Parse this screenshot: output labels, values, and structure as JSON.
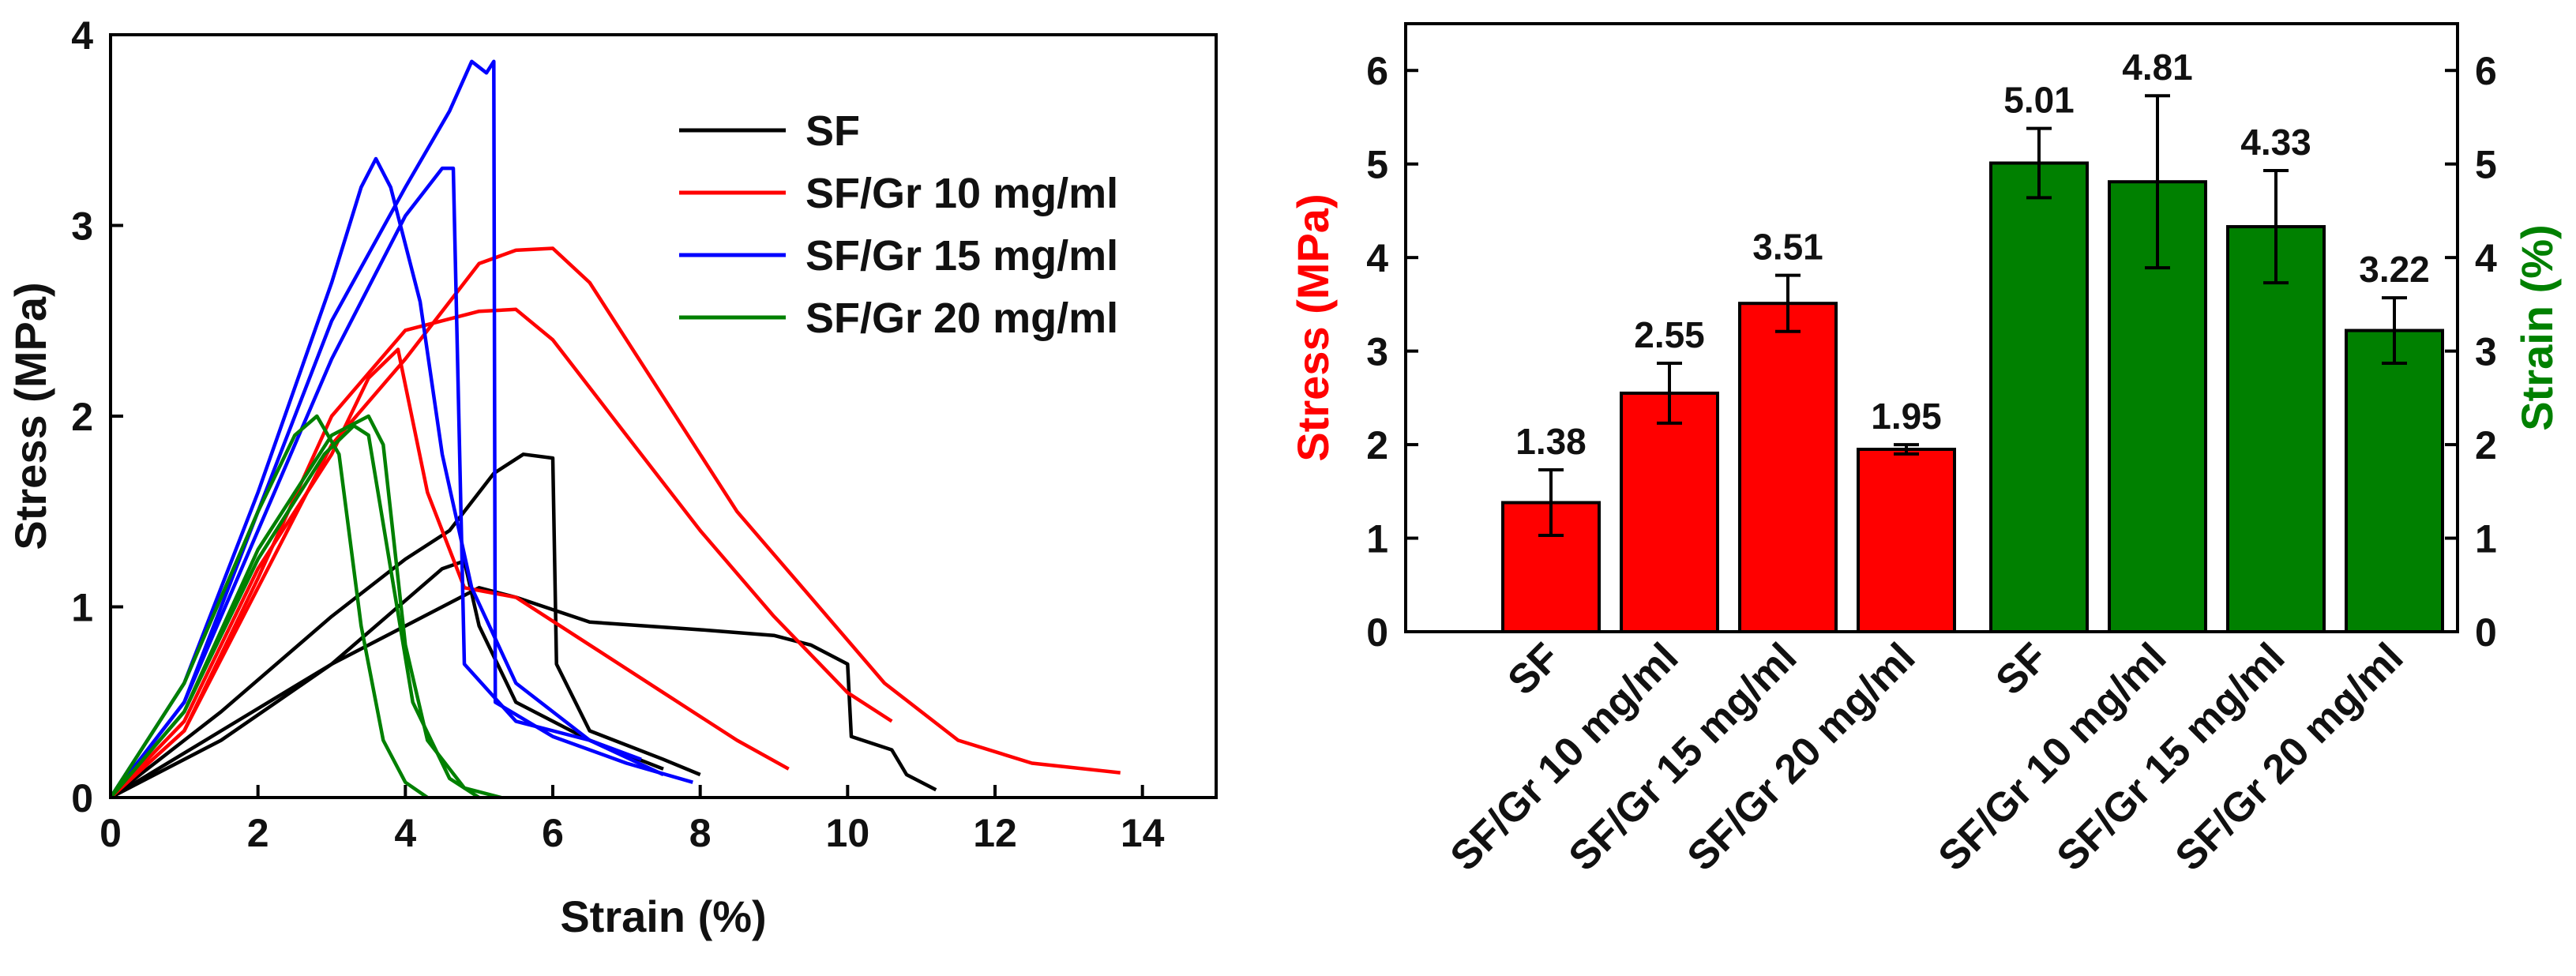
{
  "chart_data": [
    {
      "type": "line",
      "xlabel": "Strain (%)",
      "ylabel": "Stress (MPa)",
      "xlim": [
        0,
        15
      ],
      "ylim": [
        0,
        4
      ],
      "xticks": [
        0,
        2,
        4,
        6,
        8,
        10,
        12,
        14
      ],
      "yticks": [
        0,
        1,
        2,
        3,
        4
      ],
      "legend_position": "top-right",
      "series": [
        {
          "name": "SF",
          "color": "#000000",
          "curves": [
            [
              [
                0,
                0
              ],
              [
                1.5,
                0.45
              ],
              [
                3,
                0.95
              ],
              [
                4,
                1.25
              ],
              [
                4.6,
                1.4
              ],
              [
                5.2,
                1.7
              ],
              [
                5.6,
                1.8
              ],
              [
                6,
                1.78
              ],
              [
                6.05,
                0.7
              ],
              [
                6.5,
                0.35
              ],
              [
                7.5,
                0.2
              ],
              [
                8,
                0.12
              ]
            ],
            [
              [
                0,
                0
              ],
              [
                1.5,
                0.35
              ],
              [
                3,
                0.7
              ],
              [
                4.5,
                1.2
              ],
              [
                4.8,
                1.24
              ],
              [
                5,
                0.9
              ],
              [
                5.5,
                0.5
              ],
              [
                6.5,
                0.3
              ],
              [
                7.5,
                0.15
              ]
            ],
            [
              [
                0,
                0
              ],
              [
                1.5,
                0.3
              ],
              [
                3,
                0.7
              ],
              [
                4.5,
                1.0
              ],
              [
                5,
                1.1
              ],
              [
                5.5,
                1.05
              ],
              [
                6.5,
                0.92
              ],
              [
                8,
                0.88
              ],
              [
                9,
                0.85
              ],
              [
                9.5,
                0.8
              ],
              [
                10,
                0.7
              ],
              [
                10.05,
                0.32
              ],
              [
                10.6,
                0.25
              ],
              [
                10.8,
                0.12
              ],
              [
                11.2,
                0.04
              ]
            ]
          ]
        },
        {
          "name": "SF/Gr 10 mg/ml",
          "color": "#ff0000",
          "curves": [
            [
              [
                0,
                0
              ],
              [
                1,
                0.35
              ],
              [
                2,
                1.1
              ],
              [
                3,
                1.85
              ],
              [
                4,
                2.3
              ],
              [
                5,
                2.8
              ],
              [
                5.5,
                2.87
              ],
              [
                6,
                2.88
              ],
              [
                6.5,
                2.7
              ],
              [
                7.5,
                2.1
              ],
              [
                8.5,
                1.5
              ],
              [
                9.5,
                1.05
              ],
              [
                10.5,
                0.6
              ],
              [
                11.5,
                0.3
              ],
              [
                12.5,
                0.18
              ],
              [
                13.7,
                0.13
              ]
            ],
            [
              [
                0,
                0
              ],
              [
                1,
                0.35
              ],
              [
                2,
                1.15
              ],
              [
                3,
                2.0
              ],
              [
                4,
                2.45
              ],
              [
                5,
                2.55
              ],
              [
                5.5,
                2.56
              ],
              [
                6,
                2.4
              ],
              [
                7,
                1.9
              ],
              [
                8,
                1.4
              ],
              [
                9,
                0.95
              ],
              [
                10,
                0.55
              ],
              [
                10.6,
                0.4
              ]
            ],
            [
              [
                0,
                0
              ],
              [
                1,
                0.4
              ],
              [
                2,
                1.2
              ],
              [
                3,
                1.8
              ],
              [
                3.5,
                2.2
              ],
              [
                3.9,
                2.35
              ],
              [
                4.3,
                1.6
              ],
              [
                4.8,
                1.1
              ],
              [
                5.5,
                1.05
              ],
              [
                6.5,
                0.8
              ],
              [
                7.5,
                0.55
              ],
              [
                8.5,
                0.3
              ],
              [
                9.2,
                0.15
              ]
            ]
          ]
        },
        {
          "name": "SF/Gr 15 mg/ml",
          "color": "#0000ff",
          "curves": [
            [
              [
                0,
                0
              ],
              [
                1,
                0.5
              ],
              [
                2,
                1.5
              ],
              [
                3,
                2.5
              ],
              [
                4,
                3.2
              ],
              [
                4.6,
                3.6
              ],
              [
                4.9,
                3.86
              ],
              [
                5.1,
                3.8
              ],
              [
                5.2,
                3.86
              ],
              [
                5.22,
                0.5
              ],
              [
                6,
                0.32
              ],
              [
                7,
                0.18
              ],
              [
                7.9,
                0.08
              ]
            ],
            [
              [
                0,
                0
              ],
              [
                1,
                0.5
              ],
              [
                2,
                1.4
              ],
              [
                3,
                2.3
              ],
              [
                4,
                3.05
              ],
              [
                4.5,
                3.3
              ],
              [
                4.65,
                3.3
              ],
              [
                4.8,
                0.7
              ],
              [
                5.5,
                0.4
              ],
              [
                6.5,
                0.3
              ],
              [
                7.2,
                0.2
              ]
            ],
            [
              [
                0,
                0
              ],
              [
                1,
                0.6
              ],
              [
                2,
                1.6
              ],
              [
                3,
                2.7
              ],
              [
                3.4,
                3.2
              ],
              [
                3.6,
                3.35
              ],
              [
                3.8,
                3.2
              ],
              [
                4.2,
                2.6
              ],
              [
                4.5,
                1.8
              ],
              [
                4.9,
                1.1
              ],
              [
                5.5,
                0.6
              ],
              [
                6.5,
                0.3
              ],
              [
                7.5,
                0.12
              ]
            ]
          ]
        },
        {
          "name": "SF/Gr 20 mg/ml",
          "color": "#008000",
          "curves": [
            [
              [
                0,
                0
              ],
              [
                1,
                0.6
              ],
              [
                2,
                1.5
              ],
              [
                2.5,
                1.9
              ],
              [
                2.8,
                2.0
              ],
              [
                3.1,
                1.8
              ],
              [
                3.4,
                0.9
              ],
              [
                3.7,
                0.3
              ],
              [
                4,
                0.08
              ],
              [
                4.3,
                0.0
              ]
            ],
            [
              [
                0,
                0
              ],
              [
                1,
                0.45
              ],
              [
                2,
                1.3
              ],
              [
                3,
                1.9
              ],
              [
                3.5,
                2.0
              ],
              [
                3.7,
                1.85
              ],
              [
                4,
                0.8
              ],
              [
                4.3,
                0.3
              ],
              [
                4.8,
                0.05
              ],
              [
                5.3,
                0.0
              ]
            ],
            [
              [
                0,
                0
              ],
              [
                1,
                0.45
              ],
              [
                2,
                1.25
              ],
              [
                2.9,
                1.8
              ],
              [
                3.3,
                1.95
              ],
              [
                3.5,
                1.9
              ],
              [
                3.8,
                1.2
              ],
              [
                4.1,
                0.5
              ],
              [
                4.6,
                0.1
              ],
              [
                5,
                0.0
              ]
            ]
          ]
        }
      ]
    },
    {
      "type": "bar",
      "ylabel_left": "Stress (MPa)",
      "ylabel_right": "Strain (%)",
      "ylim": [
        0,
        6.5
      ],
      "yticks": [
        0,
        1,
        2,
        3,
        4,
        5,
        6
      ],
      "groups": [
        {
          "name": "Stress",
          "color": "#ff0000",
          "categories": [
            "SF",
            "SF/Gr 10 mg/ml",
            "SF/Gr 15 mg/ml",
            "SF/Gr 20 mg/ml"
          ],
          "values": [
            1.38,
            2.55,
            3.51,
            1.95
          ],
          "errors": [
            0.35,
            0.32,
            0.3,
            0.05
          ],
          "labels": [
            "1.38",
            "2.55",
            "3.51",
            "1.95"
          ]
        },
        {
          "name": "Strain",
          "color": "#008000",
          "categories": [
            "SF",
            "SF/Gr 10 mg/ml",
            "SF/Gr 15 mg/ml",
            "SF/Gr 20 mg/ml"
          ],
          "values": [
            5.01,
            4.81,
            4.33,
            3.22
          ],
          "errors": [
            0.37,
            0.92,
            0.6,
            0.35
          ],
          "labels": [
            "5.01",
            "4.81",
            "4.33",
            "3.22"
          ]
        }
      ]
    }
  ]
}
